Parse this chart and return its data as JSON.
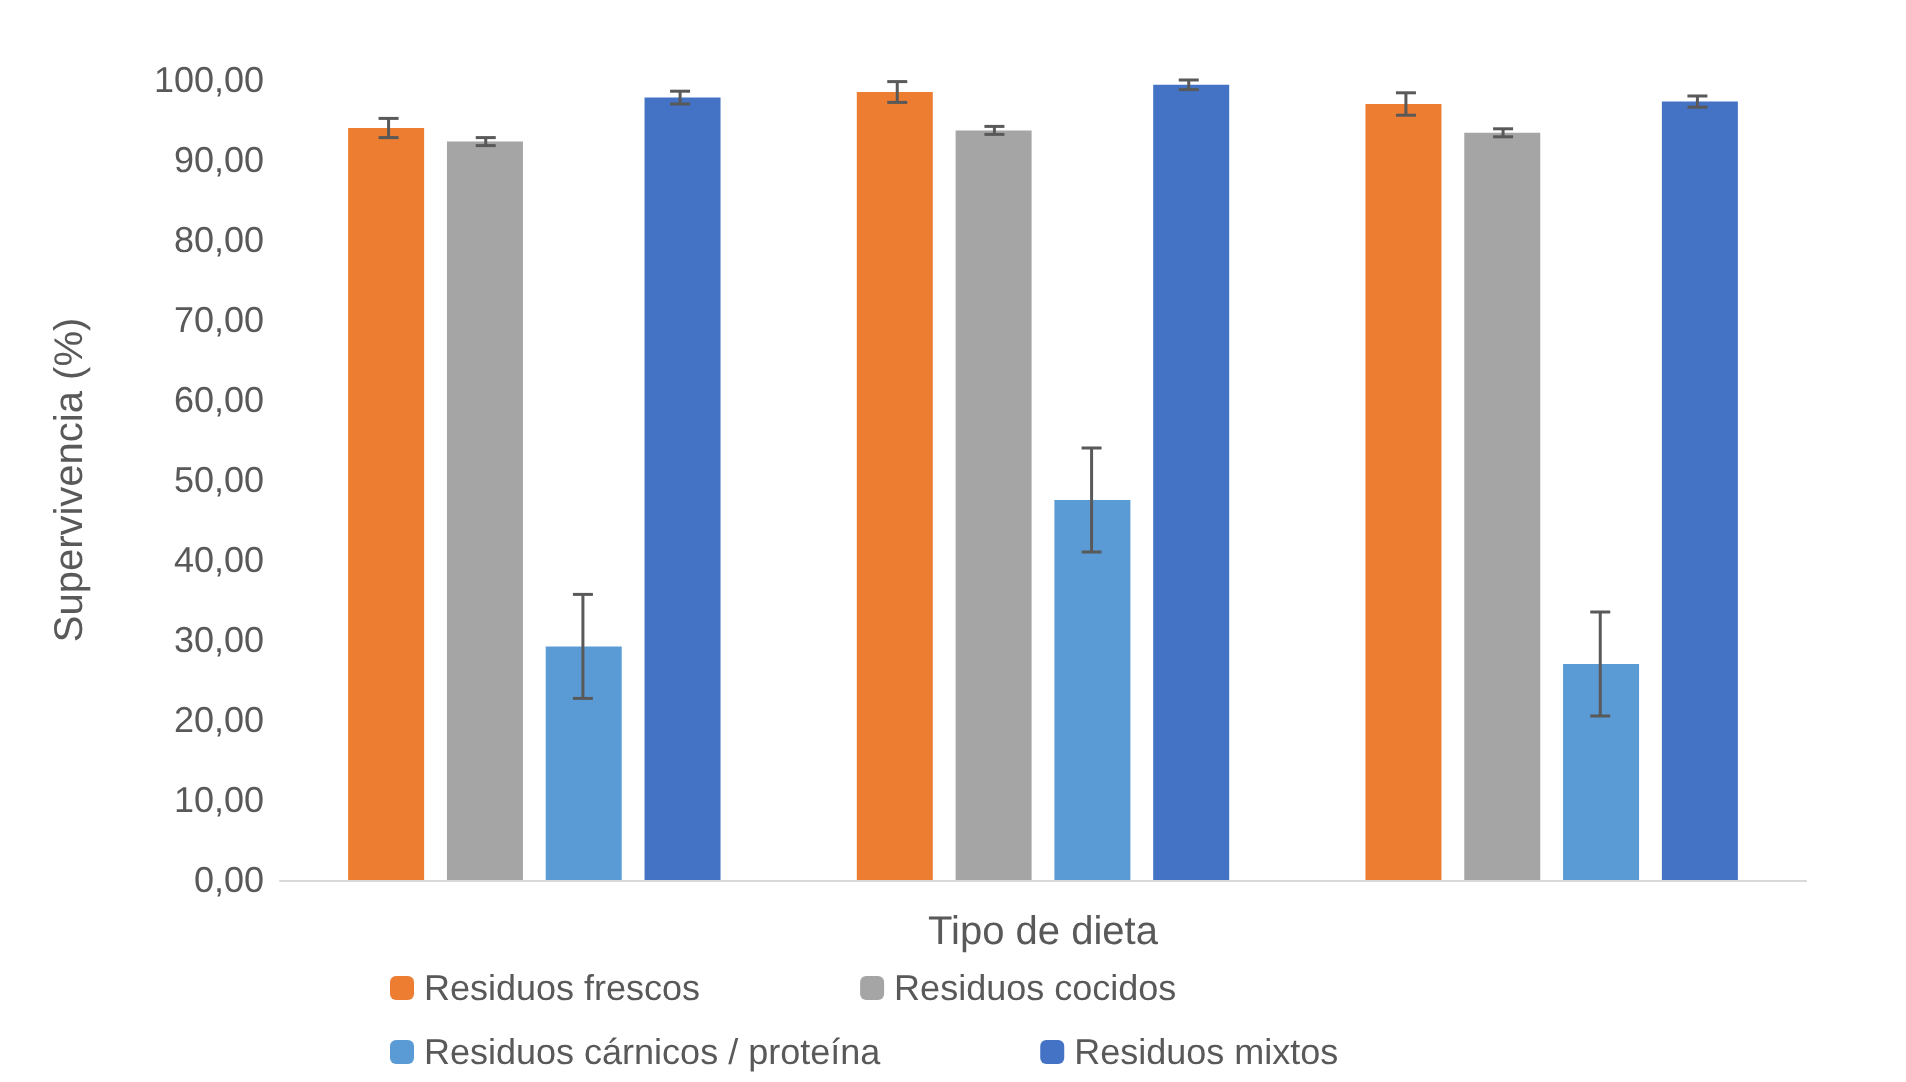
{
  "chart_data": {
    "type": "bar",
    "xlabel": "Tipo de dieta",
    "ylabel": "Supervivencia (%)",
    "categories": [
      null,
      null,
      null
    ],
    "series": [
      {
        "name": "Residuos frescos",
        "color": "#ed7d31",
        "values": [
          94.0,
          98.5,
          97.0
        ],
        "errors": [
          1.2,
          1.3,
          1.4
        ]
      },
      {
        "name": "Residuos cocidos",
        "color": "#a5a5a5",
        "values": [
          92.3,
          93.7,
          93.4
        ],
        "errors": [
          0.5,
          0.5,
          0.5
        ]
      },
      {
        "name": "Residuos cárnicos / proteína",
        "color": "#5b9bd5",
        "values": [
          29.2,
          47.5,
          27.0
        ],
        "errors": [
          6.5,
          6.5,
          6.5
        ]
      },
      {
        "name": "Residuos mixtos",
        "color": "#4472c4",
        "values": [
          97.8,
          99.4,
          97.3
        ],
        "errors": [
          0.8,
          0.6,
          0.7
        ]
      }
    ],
    "ylim": [
      0,
      100
    ],
    "yticks": [
      {
        "value": 0,
        "label": "0,00"
      },
      {
        "value": 10,
        "label": "10,00"
      },
      {
        "value": 20,
        "label": "20,00"
      },
      {
        "value": 30,
        "label": "30,00"
      },
      {
        "value": 40,
        "label": "40,00"
      },
      {
        "value": 50,
        "label": "50,00"
      },
      {
        "value": 60,
        "label": "60,00"
      },
      {
        "value": 70,
        "label": "70,00"
      },
      {
        "value": 80,
        "label": "80,00"
      },
      {
        "value": 90,
        "label": "90,00"
      },
      {
        "value": 100,
        "label": "100,00"
      }
    ],
    "grid": false,
    "legend": "bottom"
  }
}
